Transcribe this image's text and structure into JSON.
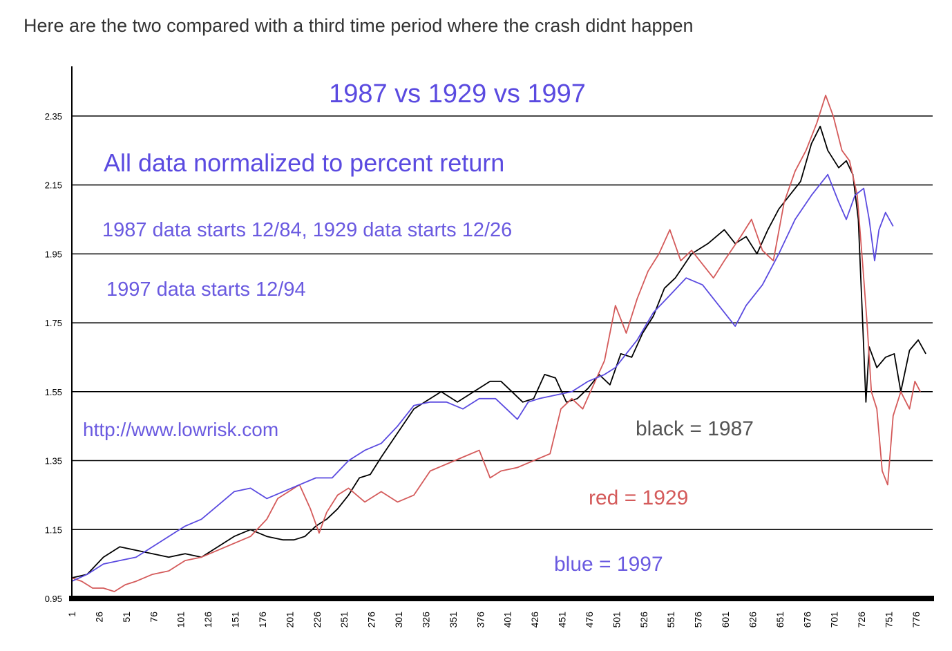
{
  "post": {
    "caption": "Here are the two compared with a third time period where the crash didnt happen"
  },
  "chart_data": {
    "type": "line",
    "title": "1987 vs 1929 vs 1997",
    "annotations": [
      "All data normalized to percent return",
      "1987 data starts 12/84, 1929 data starts 12/26",
      "1997 data starts 12/94",
      "http://www.lowrisk.com"
    ],
    "legend": [
      {
        "text": "black = 1987",
        "color": "#555555"
      },
      {
        "text": "red = 1929",
        "color": "#d45a5a"
      },
      {
        "text": "blue = 1997",
        "color": "#6a5ae0"
      }
    ],
    "ylim": [
      0.95,
      2.45
    ],
    "xlim": [
      1,
      790
    ],
    "y_ticks": [
      "2.35",
      "2.15",
      "1.95",
      "1.75",
      "1.55",
      "1.35",
      "1.15",
      "0.95"
    ],
    "x_ticks": [
      "1",
      "26",
      "51",
      "76",
      "101",
      "126",
      "151",
      "176",
      "201",
      "226",
      "251",
      "276",
      "301",
      "326",
      "351",
      "376",
      "401",
      "426",
      "451",
      "476",
      "501",
      "526",
      "551",
      "576",
      "601",
      "626",
      "651",
      "676",
      "701",
      "726",
      "751",
      "776"
    ],
    "series": [
      {
        "color": "#000000",
        "points": [
          [
            1,
            1.01
          ],
          [
            15,
            1.02
          ],
          [
            30,
            1.07
          ],
          [
            45,
            1.1
          ],
          [
            60,
            1.09
          ],
          [
            75,
            1.08
          ],
          [
            90,
            1.07
          ],
          [
            105,
            1.08
          ],
          [
            120,
            1.07
          ],
          [
            135,
            1.1
          ],
          [
            150,
            1.13
          ],
          [
            165,
            1.15
          ],
          [
            180,
            1.13
          ],
          [
            195,
            1.12
          ],
          [
            205,
            1.12
          ],
          [
            215,
            1.13
          ],
          [
            225,
            1.16
          ],
          [
            235,
            1.18
          ],
          [
            245,
            1.21
          ],
          [
            255,
            1.25
          ],
          [
            265,
            1.3
          ],
          [
            275,
            1.31
          ],
          [
            285,
            1.36
          ],
          [
            300,
            1.43
          ],
          [
            315,
            1.5
          ],
          [
            325,
            1.52
          ],
          [
            340,
            1.55
          ],
          [
            355,
            1.52
          ],
          [
            370,
            1.55
          ],
          [
            385,
            1.58
          ],
          [
            395,
            1.58
          ],
          [
            405,
            1.55
          ],
          [
            415,
            1.52
          ],
          [
            425,
            1.53
          ],
          [
            435,
            1.6
          ],
          [
            445,
            1.59
          ],
          [
            455,
            1.52
          ],
          [
            465,
            1.53
          ],
          [
            475,
            1.56
          ],
          [
            485,
            1.6
          ],
          [
            495,
            1.57
          ],
          [
            505,
            1.66
          ],
          [
            515,
            1.65
          ],
          [
            525,
            1.72
          ],
          [
            535,
            1.77
          ],
          [
            545,
            1.85
          ],
          [
            555,
            1.88
          ],
          [
            570,
            1.95
          ],
          [
            585,
            1.98
          ],
          [
            600,
            2.02
          ],
          [
            610,
            1.98
          ],
          [
            620,
            2.0
          ],
          [
            630,
            1.95
          ],
          [
            640,
            2.02
          ],
          [
            650,
            2.08
          ],
          [
            660,
            2.12
          ],
          [
            670,
            2.16
          ],
          [
            680,
            2.27
          ],
          [
            688,
            2.32
          ],
          [
            695,
            2.25
          ],
          [
            705,
            2.2
          ],
          [
            712,
            2.22
          ],
          [
            718,
            2.18
          ],
          [
            723,
            2.05
          ],
          [
            727,
            1.75
          ],
          [
            730,
            1.52
          ],
          [
            733,
            1.68
          ],
          [
            740,
            1.62
          ],
          [
            748,
            1.65
          ],
          [
            756,
            1.66
          ],
          [
            762,
            1.55
          ],
          [
            770,
            1.67
          ],
          [
            778,
            1.7
          ],
          [
            785,
            1.66
          ]
        ]
      },
      {
        "color": "#d45a5a",
        "points": [
          [
            1,
            1.01
          ],
          [
            10,
            1.0
          ],
          [
            20,
            0.98
          ],
          [
            30,
            0.98
          ],
          [
            40,
            0.97
          ],
          [
            50,
            0.99
          ],
          [
            60,
            1.0
          ],
          [
            75,
            1.02
          ],
          [
            90,
            1.03
          ],
          [
            105,
            1.06
          ],
          [
            120,
            1.07
          ],
          [
            135,
            1.09
          ],
          [
            150,
            1.11
          ],
          [
            165,
            1.13
          ],
          [
            180,
            1.18
          ],
          [
            190,
            1.24
          ],
          [
            200,
            1.26
          ],
          [
            210,
            1.28
          ],
          [
            220,
            1.21
          ],
          [
            228,
            1.14
          ],
          [
            235,
            1.2
          ],
          [
            245,
            1.25
          ],
          [
            255,
            1.27
          ],
          [
            270,
            1.23
          ],
          [
            285,
            1.26
          ],
          [
            300,
            1.23
          ],
          [
            315,
            1.25
          ],
          [
            330,
            1.32
          ],
          [
            345,
            1.34
          ],
          [
            360,
            1.36
          ],
          [
            375,
            1.38
          ],
          [
            385,
            1.3
          ],
          [
            395,
            1.32
          ],
          [
            410,
            1.33
          ],
          [
            425,
            1.35
          ],
          [
            440,
            1.37
          ],
          [
            450,
            1.5
          ],
          [
            460,
            1.53
          ],
          [
            470,
            1.5
          ],
          [
            480,
            1.57
          ],
          [
            490,
            1.64
          ],
          [
            500,
            1.8
          ],
          [
            510,
            1.72
          ],
          [
            520,
            1.82
          ],
          [
            530,
            1.9
          ],
          [
            540,
            1.95
          ],
          [
            550,
            2.02
          ],
          [
            560,
            1.93
          ],
          [
            570,
            1.96
          ],
          [
            580,
            1.92
          ],
          [
            590,
            1.88
          ],
          [
            600,
            1.93
          ],
          [
            615,
            2.0
          ],
          [
            625,
            2.05
          ],
          [
            635,
            1.96
          ],
          [
            645,
            1.93
          ],
          [
            655,
            2.1
          ],
          [
            665,
            2.19
          ],
          [
            675,
            2.25
          ],
          [
            685,
            2.33
          ],
          [
            693,
            2.41
          ],
          [
            700,
            2.35
          ],
          [
            708,
            2.25
          ],
          [
            715,
            2.22
          ],
          [
            722,
            2.12
          ],
          [
            727,
            1.92
          ],
          [
            731,
            1.75
          ],
          [
            735,
            1.55
          ],
          [
            740,
            1.5
          ],
          [
            745,
            1.32
          ],
          [
            750,
            1.28
          ],
          [
            755,
            1.48
          ],
          [
            762,
            1.55
          ],
          [
            770,
            1.5
          ],
          [
            775,
            1.58
          ],
          [
            780,
            1.55
          ]
        ]
      },
      {
        "color": "#5a4ae0",
        "points": [
          [
            1,
            1.0
          ],
          [
            15,
            1.02
          ],
          [
            30,
            1.05
          ],
          [
            45,
            1.06
          ],
          [
            60,
            1.07
          ],
          [
            75,
            1.1
          ],
          [
            90,
            1.13
          ],
          [
            105,
            1.16
          ],
          [
            120,
            1.18
          ],
          [
            135,
            1.22
          ],
          [
            150,
            1.26
          ],
          [
            165,
            1.27
          ],
          [
            180,
            1.24
          ],
          [
            195,
            1.26
          ],
          [
            210,
            1.28
          ],
          [
            225,
            1.3
          ],
          [
            240,
            1.3
          ],
          [
            255,
            1.35
          ],
          [
            270,
            1.38
          ],
          [
            285,
            1.4
          ],
          [
            300,
            1.45
          ],
          [
            315,
            1.51
          ],
          [
            330,
            1.52
          ],
          [
            345,
            1.52
          ],
          [
            360,
            1.5
          ],
          [
            375,
            1.53
          ],
          [
            390,
            1.53
          ],
          [
            400,
            1.5
          ],
          [
            410,
            1.47
          ],
          [
            420,
            1.52
          ],
          [
            430,
            1.53
          ],
          [
            445,
            1.54
          ],
          [
            460,
            1.55
          ],
          [
            475,
            1.58
          ],
          [
            490,
            1.6
          ],
          [
            500,
            1.62
          ],
          [
            510,
            1.66
          ],
          [
            520,
            1.7
          ],
          [
            535,
            1.78
          ],
          [
            550,
            1.83
          ],
          [
            565,
            1.88
          ],
          [
            580,
            1.86
          ],
          [
            590,
            1.82
          ],
          [
            600,
            1.78
          ],
          [
            610,
            1.74
          ],
          [
            620,
            1.8
          ],
          [
            635,
            1.86
          ],
          [
            650,
            1.95
          ],
          [
            665,
            2.05
          ],
          [
            680,
            2.12
          ],
          [
            695,
            2.18
          ],
          [
            705,
            2.1
          ],
          [
            712,
            2.05
          ],
          [
            720,
            2.12
          ],
          [
            728,
            2.14
          ],
          [
            733,
            2.05
          ],
          [
            738,
            1.93
          ],
          [
            742,
            2.02
          ],
          [
            748,
            2.07
          ],
          [
            755,
            2.03
          ]
        ]
      }
    ]
  }
}
